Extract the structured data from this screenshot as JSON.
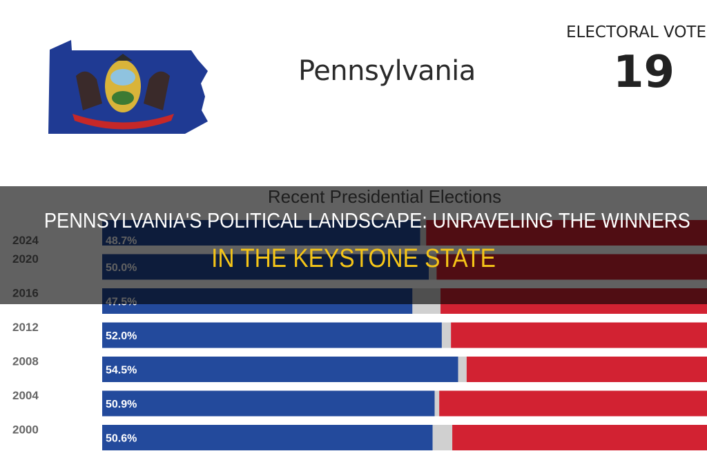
{
  "header": {
    "state_name": "Pennsylvania",
    "electoral_votes_label": "ELECTORAL VOTES",
    "electoral_votes": "19",
    "flag_icon": "pennsylvania-state-flag-map"
  },
  "headline": {
    "line1": "PENNSYLVANIA'S POLITICAL LANDSCAPE: UNRAVELING THE WINNERS",
    "line2": "IN THE KEYSTONE STATE",
    "line2_color": "#f5c518"
  },
  "chart_data": {
    "type": "bar",
    "stacked": true,
    "orientation": "horizontal",
    "title": "Recent Presidential Elections",
    "categories": [
      "2024",
      "2020",
      "2016",
      "2012",
      "2008",
      "2004",
      "2000"
    ],
    "series": [
      {
        "values": [
          48.7,
          50.0,
          47.5,
          52.0,
          54.5,
          50.9,
          50.6
        ],
        "labels": [
          "48.7%",
          "50.0%",
          "47.5%",
          "52.0%",
          "54.5%",
          "50.9%",
          "50.6%"
        ],
        "color": "#234a9c"
      },
      {
        "values": [
          0.9,
          1.2,
          4.3,
          1.4,
          1.3,
          0.7,
          3.0
        ],
        "color": "#d0d0d0"
      },
      {
        "values": [
          50.4,
          48.8,
          48.2,
          46.6,
          44.2,
          48.4,
          46.4
        ],
        "color": "#d22232"
      }
    ],
    "xlim": [
      0,
      100
    ],
    "grid": false
  }
}
